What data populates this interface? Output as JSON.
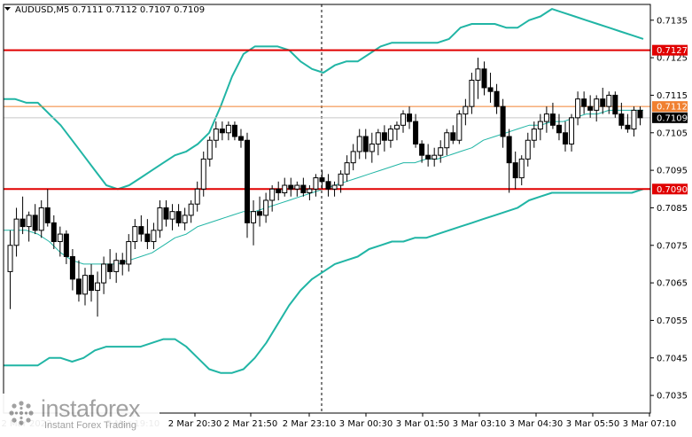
{
  "header": {
    "symbol_line": "AUDUSD,M5  0.7111 0.7112 0.7107 0.7109"
  },
  "watermark": {
    "brand": "instaforex",
    "tagline": "Instant Forex Trading",
    "icon": "instaforex-logo-icon"
  },
  "colors": {
    "background": "#ffffff",
    "candle": "#000000",
    "bollinger": "#21b5a5",
    "level_line": "#e00000",
    "current_line": "#f08030",
    "price_tag_red": "#e00000",
    "price_tag_black": "#000000"
  },
  "chart_data": {
    "type": "candlestick",
    "symbol": "AUDUSD",
    "timeframe": "M5",
    "ohlc_header": {
      "open": 0.7111,
      "high": 0.7112,
      "low": 0.7107,
      "close": 0.7109
    },
    "ylim": [
      0.70303,
      0.71392
    ],
    "y_ticks": [
      "0.7135",
      "0.7125",
      "0.7115",
      "0.7105",
      "0.7095",
      "0.7085",
      "0.7075",
      "0.7065",
      "0.7055",
      "0.7045",
      "0.7035"
    ],
    "y_tick_values": [
      0.7135,
      0.7125,
      0.7115,
      0.7105,
      0.7095,
      0.7085,
      0.7075,
      0.7065,
      0.7055,
      0.7045,
      0.7035
    ],
    "x_tick_labels": [
      "2 Mar 2022",
      "2 Mar 19:10",
      "2 Mar 20:30",
      "2 Mar 21:50",
      "2 Mar 23:10",
      "3 Mar 00:30",
      "3 Mar 01:50",
      "3 Mar 03:10",
      "3 Mar 04:30",
      "3 Mar 05:50",
      "3 Mar 07:10"
    ],
    "horizontal_levels": [
      {
        "price": 0.7127,
        "label": "0.7127",
        "style": "red"
      },
      {
        "price": 0.709,
        "label": "0.7090",
        "style": "red"
      },
      {
        "price": 0.7112,
        "label": "0.7112",
        "style": "orange"
      },
      {
        "price": 0.7109,
        "label": "0.7109",
        "style": "black"
      }
    ],
    "bollinger": {
      "upper": [
        0.7114,
        0.7114,
        0.7113,
        0.7113,
        0.711,
        0.7107,
        0.7103,
        0.7099,
        0.7095,
        0.7091,
        0.709,
        0.7091,
        0.7093,
        0.7095,
        0.7097,
        0.7099,
        0.71,
        0.7102,
        0.7105,
        0.7112,
        0.712,
        0.7126,
        0.7128,
        0.7128,
        0.7128,
        0.7127,
        0.7124,
        0.7122,
        0.7121,
        0.7123,
        0.7124,
        0.7124,
        0.7126,
        0.7128,
        0.7129,
        0.7129,
        0.7129,
        0.7129,
        0.7129,
        0.713,
        0.7133,
        0.7134,
        0.7134,
        0.7134,
        0.7133,
        0.7133,
        0.7135,
        0.7136,
        0.7138,
        0.7137,
        0.7136,
        0.7135,
        0.7134,
        0.7133,
        0.7132,
        0.7131,
        0.713
      ],
      "middle": [
        0.7079,
        0.7079,
        0.7079,
        0.7078,
        0.7076,
        0.7073,
        0.7071,
        0.707,
        0.707,
        0.707,
        0.707,
        0.7071,
        0.7072,
        0.7073,
        0.7075,
        0.7077,
        0.7078,
        0.708,
        0.7081,
        0.7082,
        0.7083,
        0.7084,
        0.7084,
        0.7085,
        0.7086,
        0.7087,
        0.7088,
        0.7089,
        0.709,
        0.7091,
        0.7092,
        0.7093,
        0.7094,
        0.7095,
        0.7096,
        0.7097,
        0.7097,
        0.7098,
        0.7098,
        0.7099,
        0.71,
        0.7101,
        0.7103,
        0.7104,
        0.7105,
        0.7106,
        0.7107,
        0.7107,
        0.7108,
        0.7108,
        0.7109,
        0.711,
        0.711,
        0.7111,
        0.7111,
        0.7111,
        0.7111
      ],
      "lower": [
        0.7043,
        0.7043,
        0.7043,
        0.7043,
        0.7045,
        0.7045,
        0.7044,
        0.7045,
        0.7047,
        0.7048,
        0.7048,
        0.7048,
        0.7048,
        0.7049,
        0.705,
        0.705,
        0.7048,
        0.7045,
        0.7042,
        0.7041,
        0.7041,
        0.7042,
        0.7045,
        0.7049,
        0.7054,
        0.7059,
        0.7063,
        0.7066,
        0.7068,
        0.707,
        0.7071,
        0.7072,
        0.7074,
        0.7075,
        0.7076,
        0.7076,
        0.7077,
        0.7077,
        0.7078,
        0.7079,
        0.708,
        0.7081,
        0.7082,
        0.7083,
        0.7084,
        0.7085,
        0.7087,
        0.7088,
        0.7089,
        0.7089,
        0.7089,
        0.7089,
        0.7089,
        0.7089,
        0.7089,
        0.7089,
        0.709
      ]
    },
    "candles": [
      [
        0.7068,
        0.7079,
        0.7058,
        0.7075
      ],
      [
        0.7075,
        0.7085,
        0.7072,
        0.7082
      ],
      [
        0.7082,
        0.7088,
        0.7078,
        0.708
      ],
      [
        0.708,
        0.7084,
        0.7076,
        0.7083
      ],
      [
        0.7083,
        0.7086,
        0.7078,
        0.7079
      ],
      [
        0.7079,
        0.7087,
        0.7077,
        0.7085
      ],
      [
        0.7085,
        0.709,
        0.708,
        0.7081
      ],
      [
        0.7081,
        0.7083,
        0.7074,
        0.7076
      ],
      [
        0.7076,
        0.708,
        0.7072,
        0.7078
      ],
      [
        0.7078,
        0.7079,
        0.707,
        0.7072
      ],
      [
        0.7072,
        0.7074,
        0.7063,
        0.7066
      ],
      [
        0.7066,
        0.7071,
        0.706,
        0.7062
      ],
      [
        0.7062,
        0.7069,
        0.7059,
        0.7067
      ],
      [
        0.7067,
        0.707,
        0.706,
        0.7063
      ],
      [
        0.7063,
        0.7068,
        0.7056,
        0.7065
      ],
      [
        0.7065,
        0.7072,
        0.7062,
        0.707
      ],
      [
        0.707,
        0.7074,
        0.7066,
        0.7068
      ],
      [
        0.7068,
        0.7073,
        0.7065,
        0.7071
      ],
      [
        0.7071,
        0.7073,
        0.7067,
        0.707
      ],
      [
        0.707,
        0.7078,
        0.7068,
        0.7076
      ],
      [
        0.7076,
        0.7082,
        0.7074,
        0.708
      ],
      [
        0.708,
        0.7083,
        0.7076,
        0.7078
      ],
      [
        0.7078,
        0.7082,
        0.7074,
        0.7076
      ],
      [
        0.7076,
        0.7081,
        0.7074,
        0.7079
      ],
      [
        0.7079,
        0.7087,
        0.7077,
        0.7085
      ],
      [
        0.7085,
        0.7087,
        0.708,
        0.7082
      ],
      [
        0.7082,
        0.7086,
        0.7079,
        0.7084
      ],
      [
        0.7084,
        0.7086,
        0.708,
        0.7081
      ],
      [
        0.7081,
        0.7085,
        0.7079,
        0.7083
      ],
      [
        0.7083,
        0.7087,
        0.7081,
        0.7086
      ],
      [
        0.7086,
        0.7092,
        0.7084,
        0.709
      ],
      [
        0.709,
        0.71,
        0.7088,
        0.7098
      ],
      [
        0.7098,
        0.7104,
        0.7096,
        0.7103
      ],
      [
        0.7103,
        0.7108,
        0.7101,
        0.7106
      ],
      [
        0.7106,
        0.7108,
        0.7103,
        0.7105
      ],
      [
        0.7105,
        0.7108,
        0.7103,
        0.7107
      ],
      [
        0.7107,
        0.7108,
        0.7103,
        0.7104
      ],
      [
        0.7104,
        0.7106,
        0.7101,
        0.7103
      ],
      [
        0.7103,
        0.7105,
        0.7077,
        0.7081
      ],
      [
        0.7081,
        0.7087,
        0.7075,
        0.7084
      ],
      [
        0.7084,
        0.7088,
        0.708,
        0.7083
      ],
      [
        0.7083,
        0.7089,
        0.7081,
        0.7087
      ],
      [
        0.7087,
        0.7091,
        0.7084,
        0.709
      ],
      [
        0.709,
        0.7092,
        0.7087,
        0.7089
      ],
      [
        0.7089,
        0.7093,
        0.7088,
        0.7091
      ],
      [
        0.7091,
        0.7093,
        0.7088,
        0.709
      ],
      [
        0.709,
        0.7092,
        0.7088,
        0.7091
      ],
      [
        0.7091,
        0.7093,
        0.7088,
        0.7089
      ],
      [
        0.7089,
        0.7091,
        0.7087,
        0.709
      ],
      [
        0.709,
        0.7094,
        0.7088,
        0.7093
      ],
      [
        0.7093,
        0.7095,
        0.709,
        0.7092
      ],
      [
        0.7092,
        0.7094,
        0.7088,
        0.709
      ],
      [
        0.709,
        0.7092,
        0.7088,
        0.7091
      ],
      [
        0.7091,
        0.7095,
        0.7089,
        0.7094
      ],
      [
        0.7094,
        0.7099,
        0.7092,
        0.7097
      ],
      [
        0.7097,
        0.7102,
        0.7095,
        0.71
      ],
      [
        0.71,
        0.7106,
        0.7098,
        0.7104
      ],
      [
        0.7104,
        0.7106,
        0.7098,
        0.71
      ],
      [
        0.71,
        0.7105,
        0.7097,
        0.7102
      ],
      [
        0.7102,
        0.7106,
        0.7099,
        0.7105
      ],
      [
        0.7105,
        0.7107,
        0.71,
        0.7103
      ],
      [
        0.7103,
        0.7107,
        0.7101,
        0.7106
      ],
      [
        0.7106,
        0.7108,
        0.7103,
        0.7107
      ],
      [
        0.7107,
        0.7111,
        0.7105,
        0.711
      ],
      [
        0.711,
        0.7112,
        0.7106,
        0.7108
      ],
      [
        0.7108,
        0.711,
        0.7101,
        0.7102
      ],
      [
        0.7102,
        0.7103,
        0.7097,
        0.7099
      ],
      [
        0.7099,
        0.7102,
        0.7096,
        0.7098
      ],
      [
        0.7098,
        0.7101,
        0.7096,
        0.7099
      ],
      [
        0.7099,
        0.7103,
        0.7097,
        0.7101
      ],
      [
        0.7101,
        0.7106,
        0.7099,
        0.7105
      ],
      [
        0.7105,
        0.7107,
        0.7102,
        0.7103
      ],
      [
        0.7103,
        0.7111,
        0.7102,
        0.711
      ],
      [
        0.711,
        0.7114,
        0.7107,
        0.7112
      ],
      [
        0.7112,
        0.7121,
        0.711,
        0.7119
      ],
      [
        0.7119,
        0.7125,
        0.7114,
        0.7122
      ],
      [
        0.7122,
        0.7124,
        0.7115,
        0.7117
      ],
      [
        0.7117,
        0.7121,
        0.7113,
        0.7116
      ],
      [
        0.7116,
        0.7118,
        0.711,
        0.7112
      ],
      [
        0.7112,
        0.7114,
        0.7101,
        0.7104
      ],
      [
        0.7104,
        0.7106,
        0.7089,
        0.7097
      ],
      [
        0.7097,
        0.71,
        0.709,
        0.7093
      ],
      [
        0.7093,
        0.7099,
        0.7091,
        0.7098
      ],
      [
        0.7098,
        0.7105,
        0.7096,
        0.7103
      ],
      [
        0.7103,
        0.7108,
        0.7101,
        0.7106
      ],
      [
        0.7106,
        0.711,
        0.7103,
        0.7108
      ],
      [
        0.7108,
        0.7112,
        0.7105,
        0.711
      ],
      [
        0.711,
        0.7113,
        0.7106,
        0.7107
      ],
      [
        0.7107,
        0.711,
        0.7103,
        0.7105
      ],
      [
        0.7105,
        0.7108,
        0.71,
        0.7102
      ],
      [
        0.7102,
        0.711,
        0.71,
        0.7109
      ],
      [
        0.7109,
        0.7116,
        0.7107,
        0.7114
      ],
      [
        0.7114,
        0.7116,
        0.711,
        0.7112
      ],
      [
        0.7112,
        0.7115,
        0.7109,
        0.7111
      ],
      [
        0.7111,
        0.7115,
        0.7108,
        0.7114
      ],
      [
        0.7114,
        0.7117,
        0.711,
        0.7112
      ],
      [
        0.7112,
        0.7116,
        0.711,
        0.7115
      ],
      [
        0.7115,
        0.7116,
        0.7109,
        0.711
      ],
      [
        0.711,
        0.7113,
        0.7106,
        0.7107
      ],
      [
        0.7107,
        0.711,
        0.7105,
        0.7106
      ],
      [
        0.7106,
        0.7112,
        0.7104,
        0.7111
      ],
      [
        0.7111,
        0.7112,
        0.7107,
        0.7109
      ]
    ]
  }
}
